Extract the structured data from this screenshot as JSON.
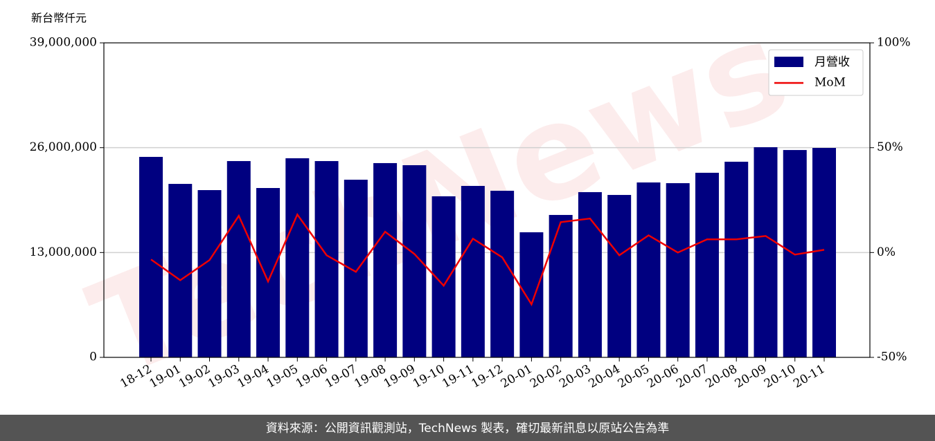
{
  "chart_data": {
    "type": "bar_line",
    "y_label": "新台幣仟元",
    "watermark": "TechNews",
    "footer": "資料來源：公開資訊觀測站，TechNews 製表，確切最新訊息以原站公告為準",
    "categories": [
      "18-12",
      "19-01",
      "19-02",
      "19-03",
      "19-04",
      "19-05",
      "19-06",
      "19-07",
      "19-08",
      "19-09",
      "19-10",
      "19-11",
      "19-12",
      "20-01",
      "20-02",
      "20-03",
      "20-04",
      "20-05",
      "20-06",
      "20-07",
      "20-08",
      "20-09",
      "20-10",
      "20-11"
    ],
    "series": [
      {
        "name": "月營收",
        "color": "#000080",
        "type": "bar",
        "values": [
          24860000,
          21510000,
          20740000,
          24340000,
          21000000,
          24690000,
          24340000,
          22030000,
          24090000,
          23830000,
          19970000,
          21260000,
          20660000,
          15510000,
          17660000,
          20490000,
          20140000,
          21690000,
          21600000,
          22890000,
          24260000,
          26060000,
          25710000,
          25970000
        ]
      },
      {
        "name": "MoM",
        "color": "#ee0000",
        "type": "line",
        "axis": "y2",
        "values": [
          -3.3,
          -13.2,
          -3.6,
          17.5,
          -13.8,
          18.1,
          -1.3,
          -9.2,
          9.9,
          -0.7,
          -15.8,
          6.6,
          -2.3,
          -24.7,
          14.5,
          16.2,
          -1.3,
          8.2,
          0,
          6.3,
          6.3,
          7.9,
          -1.0,
          1.3
        ]
      }
    ],
    "ylim": [
      0,
      39000000
    ],
    "yticks": [
      0,
      {
        "value": 13000000,
        "label": "13,000,000"
      },
      {
        "value": 26000000,
        "label": "26,000,000"
      },
      {
        "value": 39000000,
        "label": "39,000,000"
      }
    ],
    "y2lim": [
      -50,
      100
    ],
    "y2ticks": [
      {
        "value": -50,
        "label": "-50%"
      },
      {
        "value": 0,
        "label": "0%"
      },
      {
        "value": 50,
        "label": "50%"
      },
      {
        "value": 100,
        "label": "100%"
      }
    ],
    "grid": true,
    "legend": "upper right"
  }
}
